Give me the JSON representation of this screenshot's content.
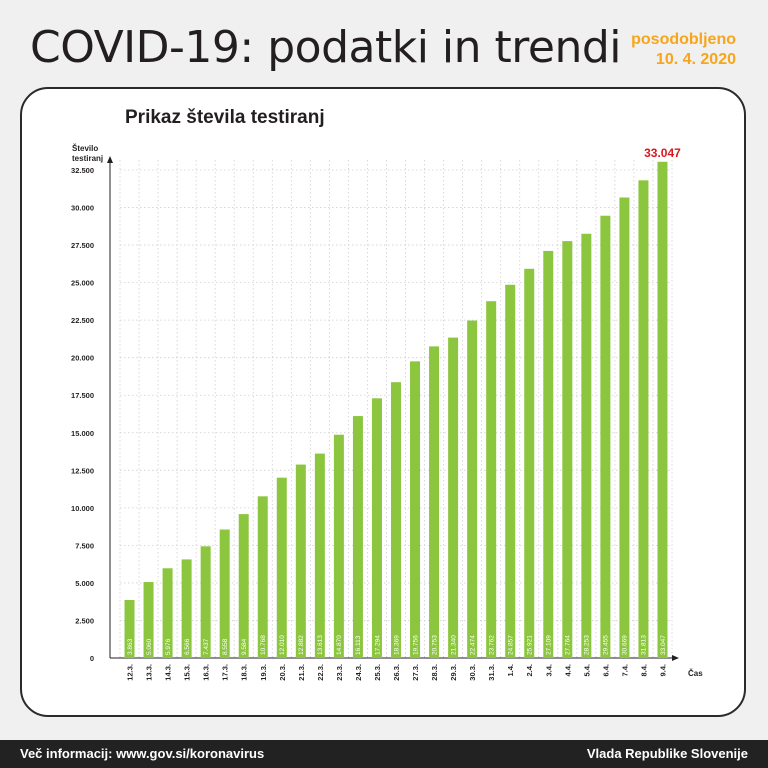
{
  "header": {
    "title": "COVID-19: podatki in trendi",
    "updated_label": "posodobljeno",
    "updated_date": "10. 4. 2020"
  },
  "chart_data": {
    "type": "bar",
    "title": "Prikaz števila testiranj",
    "ylabel": "Število testiranj",
    "xlabel": "Čas",
    "ylim": [
      0,
      33047
    ],
    "yticks": [
      "0",
      "2.500",
      "5.000",
      "7.500",
      "10.000",
      "12.500",
      "15.000",
      "17.500",
      "20.000",
      "22.500",
      "25.000",
      "27.500",
      "30.000",
      "32.500"
    ],
    "categories": [
      "12.3.",
      "13.3.",
      "14.3.",
      "15.3.",
      "16.3.",
      "17.3.",
      "18.3.",
      "19.3.",
      "20.3.",
      "21.3.",
      "22.3.",
      "23.3.",
      "24.3.",
      "25.3.",
      "26.3.",
      "27.3.",
      "28.3.",
      "29.3.",
      "30.3.",
      "31.3.",
      "1.4.",
      "2.4.",
      "3.4.",
      "4.4.",
      "5.4.",
      "6.4.",
      "7.4.",
      "8.4.",
      "9.4."
    ],
    "values": [
      3863,
      5060,
      5976,
      6566,
      7437,
      8558,
      9584,
      10768,
      12010,
      12882,
      13613,
      14870,
      16113,
      17294,
      18369,
      19756,
      20753,
      21340,
      22474,
      23762,
      24857,
      25921,
      27109,
      27764,
      28253,
      29455,
      30669,
      31813,
      33047
    ],
    "value_labels": [
      "3.863",
      "5.060",
      "5.976",
      "6.566",
      "7.437",
      "8.558",
      "9.584",
      "10.768",
      "12.010",
      "12.882",
      "13.613",
      "14.870",
      "16.113",
      "17.294",
      "18.369",
      "19.756",
      "20.753",
      "21.340",
      "22.474",
      "23.762",
      "24.857",
      "25.921",
      "27.109",
      "27.764",
      "28.253",
      "29.455",
      "30.669",
      "31.813",
      "33.047"
    ],
    "highlight_label": "33.047",
    "bar_color": "#8cc63f",
    "highlight_color": "#d7191c",
    "grid": true
  },
  "footer": {
    "left": "Več informacij: www.gov.si/koronavirus",
    "right": "Vlada Republike Slovenije"
  }
}
